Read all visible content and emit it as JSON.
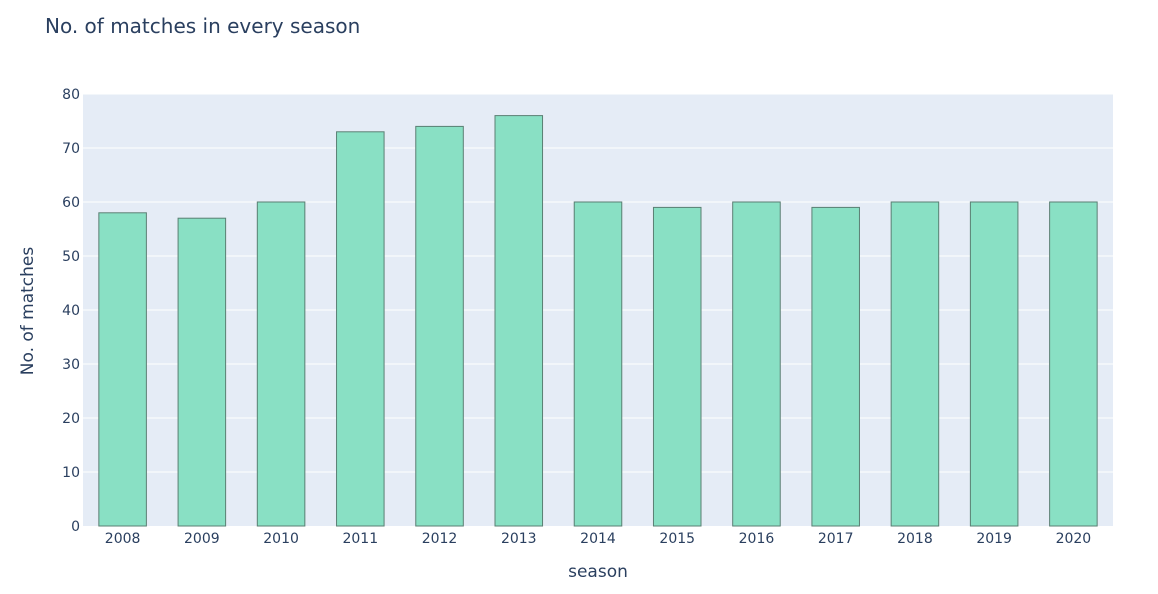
{
  "chart_data": {
    "type": "bar",
    "title": "No. of matches in every season",
    "xlabel": "season",
    "ylabel": "No. of matches",
    "categories": [
      "2008",
      "2009",
      "2010",
      "2011",
      "2012",
      "2013",
      "2014",
      "2015",
      "2016",
      "2017",
      "2018",
      "2019",
      "2020"
    ],
    "values": [
      58,
      57,
      60,
      73,
      74,
      76,
      60,
      59,
      60,
      59,
      60,
      60,
      60
    ],
    "ylim": [
      0,
      80
    ],
    "yticks": [
      0,
      10,
      20,
      30,
      40,
      50,
      60,
      70,
      80
    ],
    "grid": true,
    "legend": "none"
  },
  "colors": {
    "bar_fill": "#89e0c4",
    "bar_stroke": "#5a7f73",
    "plot_background": "#e5ecf6",
    "grid": "#ffffff",
    "text": "#2a3f5f"
  }
}
